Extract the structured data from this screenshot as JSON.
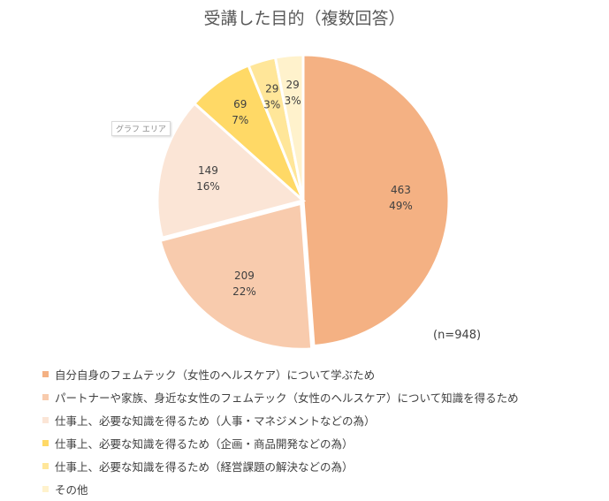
{
  "chart_data": {
    "type": "pie",
    "title": "受講した目的（複数回答）",
    "note": "(n=948)",
    "legend_position": "bottom",
    "slices": [
      {
        "name": "自分自身のフェムテック（女性のヘルスケア）について学ぶため",
        "value": 463,
        "percent_label": "49%",
        "color": "#F4B183"
      },
      {
        "name": "パートナーや家族、身近な女性のフェムテック（女性のヘルスケア）について知識を得るため",
        "value": 209,
        "percent_label": "22%",
        "color": "#F8CBAD"
      },
      {
        "name": "仕事上、必要な知識を得るため（人事・マネジメントなどの為）",
        "value": 149,
        "percent_label": "16%",
        "color": "#FBE5D6"
      },
      {
        "name": "仕事上、必要な知識を得るため（企画・商品開発などの為）",
        "value": 69,
        "percent_label": "7%",
        "color": "#FFD966"
      },
      {
        "name": "仕事上、必要な知識を得るため（経営課題の解決などの為）",
        "value": 29,
        "percent_label": "3%",
        "color": "#FFE699"
      },
      {
        "name": "その他",
        "value": 29,
        "percent_label": "3%",
        "color": "#FFF2CC"
      }
    ]
  },
  "chart_area_tag": "グラフ エリア"
}
